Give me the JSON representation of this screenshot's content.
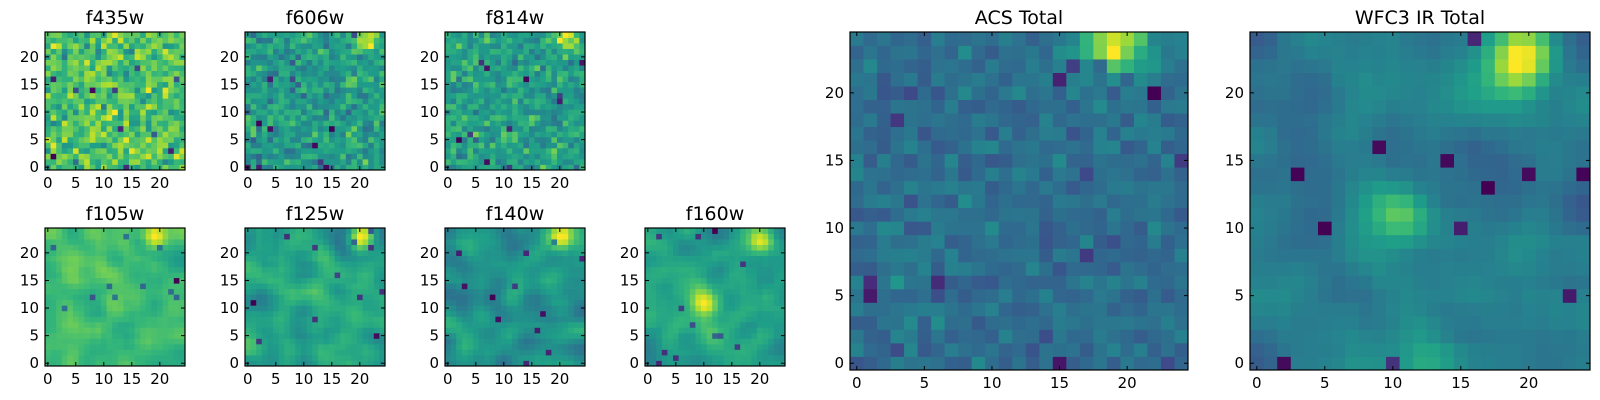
{
  "chart_data": [
    {
      "type": "heatmap",
      "title": "f435w",
      "x_ticks": [
        "0",
        "5",
        "10",
        "15",
        "20"
      ],
      "y_ticks": [
        "0",
        "5",
        "10",
        "15",
        "20"
      ],
      "xlim": [
        -0.5,
        24.5
      ],
      "ylim": [
        -0.5,
        24.5
      ],
      "grid_size": 25,
      "colormap": "viridis",
      "seed": 11,
      "pattern": "noise",
      "hot_spots": []
    },
    {
      "type": "heatmap",
      "title": "f606w",
      "x_ticks": [
        "0",
        "5",
        "10",
        "15",
        "20"
      ],
      "y_ticks": [
        "0",
        "5",
        "10",
        "15",
        "20"
      ],
      "xlim": [
        -0.5,
        24.5
      ],
      "ylim": [
        -0.5,
        24.5
      ],
      "grid_size": 25,
      "colormap": "viridis",
      "seed": 23,
      "pattern": "noise",
      "hot_spots": [
        {
          "x": 21,
          "y": 23
        }
      ]
    },
    {
      "type": "heatmap",
      "title": "f814w",
      "x_ticks": [
        "0",
        "5",
        "10",
        "15",
        "20"
      ],
      "y_ticks": [
        "0",
        "5",
        "10",
        "15",
        "20"
      ],
      "xlim": [
        -0.5,
        24.5
      ],
      "ylim": [
        -0.5,
        24.5
      ],
      "grid_size": 25,
      "colormap": "viridis",
      "seed": 37,
      "pattern": "noise",
      "hot_spots": [
        {
          "x": 21,
          "y": 23
        }
      ]
    },
    {
      "type": "heatmap",
      "title": "f105w",
      "x_ticks": [
        "0",
        "5",
        "10",
        "15",
        "20"
      ],
      "y_ticks": [
        "0",
        "5",
        "10",
        "15",
        "20"
      ],
      "xlim": [
        -0.5,
        24.5
      ],
      "ylim": [
        -0.5,
        24.5
      ],
      "grid_size": 25,
      "colormap": "viridis",
      "seed": 41,
      "pattern": "smooth",
      "hot_spots": [
        {
          "x": 19,
          "y": 23
        }
      ]
    },
    {
      "type": "heatmap",
      "title": "f125w",
      "x_ticks": [
        "0",
        "5",
        "10",
        "15",
        "20"
      ],
      "y_ticks": [
        "0",
        "5",
        "10",
        "15",
        "20"
      ],
      "xlim": [
        -0.5,
        24.5
      ],
      "ylim": [
        -0.5,
        24.5
      ],
      "grid_size": 25,
      "colormap": "viridis",
      "seed": 53,
      "pattern": "smooth",
      "hot_spots": [
        {
          "x": 20,
          "y": 23
        }
      ]
    },
    {
      "type": "heatmap",
      "title": "f140w",
      "x_ticks": [
        "0",
        "5",
        "10",
        "15",
        "20"
      ],
      "y_ticks": [
        "0",
        "5",
        "10",
        "15",
        "20"
      ],
      "xlim": [
        -0.5,
        24.5
      ],
      "ylim": [
        -0.5,
        24.5
      ],
      "grid_size": 25,
      "colormap": "viridis",
      "seed": 67,
      "pattern": "smooth",
      "hot_spots": [
        {
          "x": 20,
          "y": 23
        }
      ]
    },
    {
      "type": "heatmap",
      "title": "f160w",
      "x_ticks": [
        "0",
        "5",
        "10",
        "15",
        "20"
      ],
      "y_ticks": [
        "0",
        "5",
        "10",
        "15",
        "20"
      ],
      "xlim": [
        -0.5,
        24.5
      ],
      "ylim": [
        -0.5,
        24.5
      ],
      "grid_size": 25,
      "colormap": "viridis",
      "seed": 79,
      "pattern": "smooth",
      "hot_spots": [
        {
          "x": 20,
          "y": 22
        },
        {
          "x": 10,
          "y": 11
        }
      ]
    },
    {
      "type": "heatmap",
      "title": "ACS Total",
      "x_ticks": [
        "0",
        "5",
        "10",
        "15",
        "20"
      ],
      "y_ticks": [
        "0",
        "5",
        "10",
        "15",
        "20"
      ],
      "xlim": [
        -0.5,
        24.5
      ],
      "ylim": [
        -0.5,
        24.5
      ],
      "grid_size": 25,
      "colormap": "viridis",
      "seed": 91,
      "pattern": "noise",
      "hot_spots": [
        {
          "x": 19,
          "y": 24
        },
        {
          "x": 20,
          "y": 23
        },
        {
          "x": 18,
          "y": 24
        }
      ]
    },
    {
      "type": "heatmap",
      "title": "WFC3 IR Total",
      "x_ticks": [
        "0",
        "5",
        "10",
        "15",
        "20"
      ],
      "y_ticks": [
        "0",
        "5",
        "10",
        "15",
        "20"
      ],
      "xlim": [
        -0.5,
        24.5
      ],
      "ylim": [
        -0.5,
        24.5
      ],
      "grid_size": 25,
      "colormap": "viridis",
      "seed": 103,
      "pattern": "smooth",
      "hot_spots": [
        {
          "x": 20,
          "y": 23
        },
        {
          "x": 19,
          "y": 22
        },
        {
          "x": 10,
          "y": 11
        }
      ]
    }
  ]
}
